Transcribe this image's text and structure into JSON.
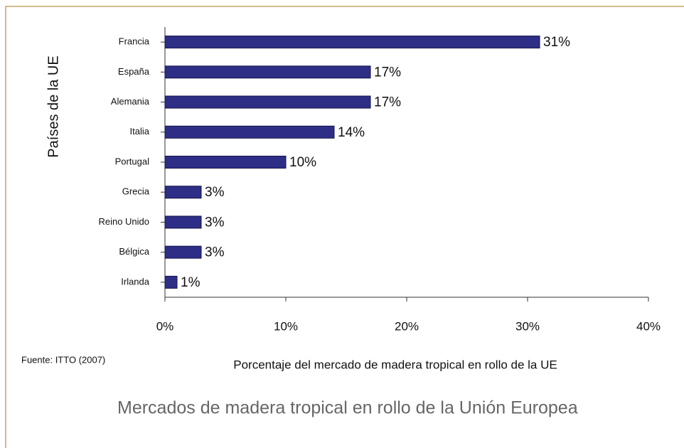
{
  "chart_data": {
    "type": "bar",
    "orientation": "horizontal",
    "ylabel": "Países de la UE",
    "xlabel": "Porcentaje del mercado de madera tropical en rollo de la UE",
    "source": "Fuente: ITTO (2007)",
    "caption": "Mercados de madera tropical en rollo de la Unión Europea",
    "categories": [
      "Francia",
      "España",
      "Alemania",
      "Italia",
      "Portugal",
      "Grecia",
      "Reino Unido",
      "Bélgica",
      "Irlanda"
    ],
    "values": [
      31,
      17,
      17,
      14,
      10,
      3,
      3,
      3,
      1
    ],
    "value_labels": [
      "31%",
      "17%",
      "17%",
      "14%",
      "10%",
      "3%",
      "3%",
      "3%",
      "1%"
    ],
    "color": "#2e2e86",
    "xlim": [
      0,
      40
    ],
    "xticks": [
      {
        "value": 0,
        "label": "0%"
      },
      {
        "value": 10,
        "label": "10%"
      },
      {
        "value": 20,
        "label": "20%"
      },
      {
        "value": 30,
        "label": "30%"
      },
      {
        "value": 40,
        "label": "40%"
      }
    ]
  }
}
